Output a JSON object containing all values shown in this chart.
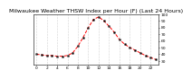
{
  "title": "Milwaukee Weather THSW Index per Hour (F) (Last 24 Hours)",
  "hours": [
    0,
    1,
    2,
    3,
    4,
    5,
    6,
    7,
    8,
    9,
    10,
    11,
    12,
    13,
    14,
    15,
    16,
    17,
    18,
    19,
    20,
    21,
    22,
    23
  ],
  "values": [
    40,
    39,
    38,
    38,
    37,
    37,
    38,
    42,
    52,
    65,
    80,
    92,
    96,
    90,
    82,
    73,
    62,
    55,
    50,
    46,
    42,
    38,
    35,
    32
  ],
  "line_color": "#ff0000",
  "marker_color": "#000000",
  "bg_color": "#ffffff",
  "grid_color": "#aaaaaa",
  "ylim_min": 25,
  "ylim_max": 100,
  "yticks": [
    30,
    40,
    50,
    60,
    70,
    80,
    90,
    100
  ],
  "xtick_step": 2,
  "title_fontsize": 4.5,
  "tick_fontsize": 3.2
}
